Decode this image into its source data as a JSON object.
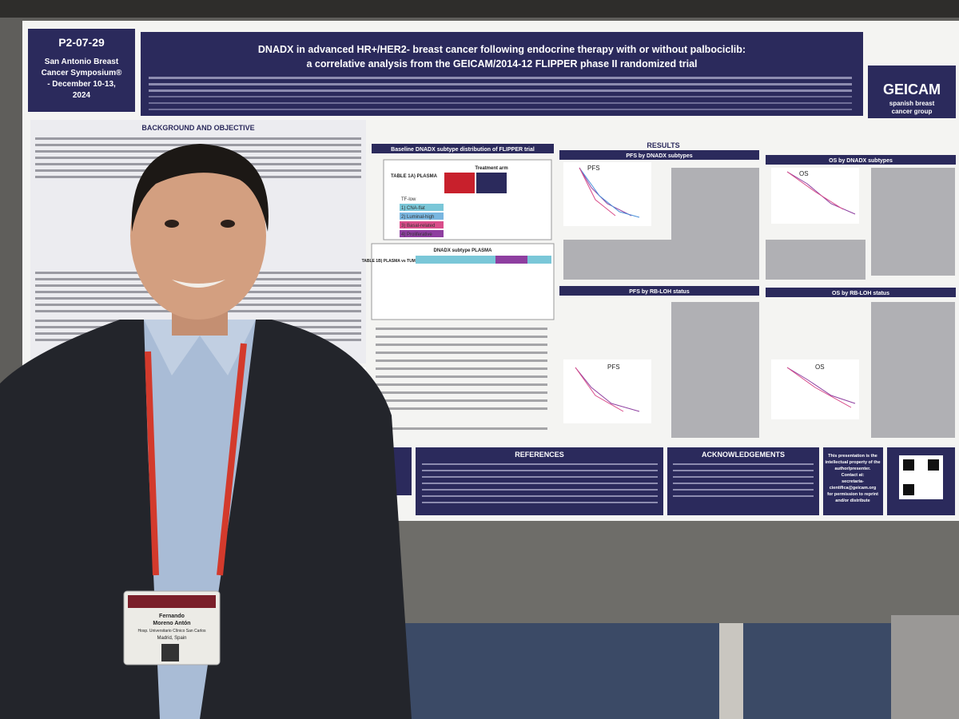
{
  "poster": {
    "session_code": "P2-07-29",
    "symposium_lines": [
      "San Antonio Breast",
      "Cancer Symposium®",
      "- December 10-13,",
      "2024"
    ],
    "title_lines": [
      "DNADX in advanced HR+/HER2- breast cancer following endocrine therapy with or without palbociclib:",
      "a correlative analysis from the GEICAM/2014-12 FLIPPER phase II randomized trial"
    ],
    "org": {
      "name": "GEICAM",
      "subtitle_lines": [
        "spanish breast",
        "cancer group"
      ]
    },
    "sections": {
      "background": "BACKGROUND AND OBJECTIVE",
      "results": "RESULTS",
      "baseline": "Baseline DNADX subtype distribution of FLIPPER trial",
      "pfs_dnadx": "PFS by DNADX subtypes",
      "os_dnadx": "OS by DNADX subtypes",
      "pfs_rbloh": "PFS by RB-LOH status",
      "os_rbloh": "OS by RB-LOH status",
      "references": "REFERENCES",
      "acknowledgements": "ACKNOWLEDGEMENTS"
    },
    "table": {
      "title": "TABLE 1A) PLASMA",
      "header": "Treatment arm",
      "rows": [
        "TF-low",
        "1) CNA-flat",
        "2) Luminal-high",
        "3) Basal-related",
        "4) Proliferative"
      ]
    },
    "table_b": {
      "title": "TABLE 1B) PLASMA vs TUMOR",
      "header": "DNADX subtype PLASMA"
    },
    "plot_labels": {
      "pfs": "PFS",
      "os": "OS"
    },
    "contact_lines": [
      "This presentation is the",
      "intellectual property of the",
      "author/presenter.",
      "Contact at:",
      "secretaria-",
      "cientifica@geicam.org",
      "for permission to reprint",
      "and/or distribute"
    ]
  },
  "badge": {
    "name_lines": [
      "Fernando",
      "Moreno Antón"
    ],
    "affiliation": "Hosp. Universitario Clínico San Carlos",
    "location": "Madrid, Spain"
  }
}
